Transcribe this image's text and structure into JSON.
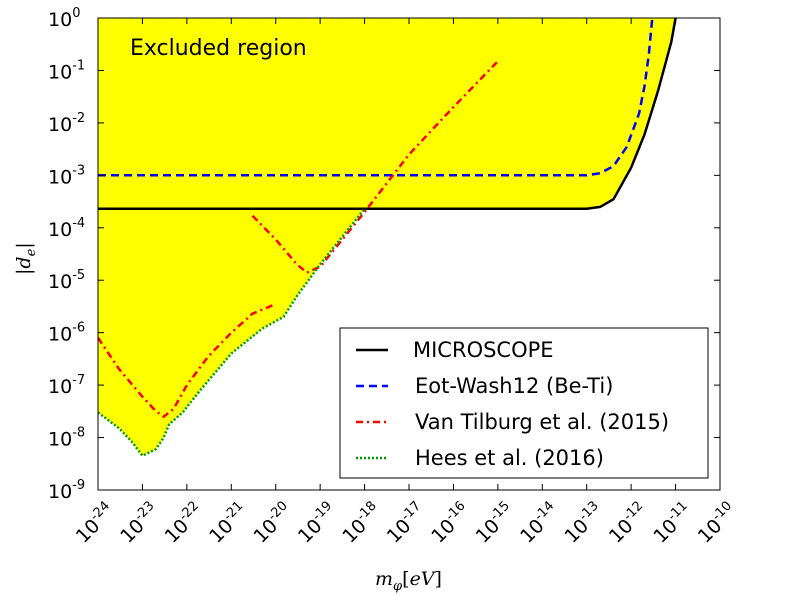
{
  "chart_data": {
    "type": "line",
    "xscale": "log",
    "yscale": "log",
    "xlim": [
      1e-24,
      1e-10
    ],
    "ylim": [
      1e-09,
      1
    ],
    "xlabel": "m_φ[eV]",
    "ylabel": "|d_e|",
    "x_tick_exponents": [
      "-24",
      "-23",
      "-22",
      "-21",
      "-20",
      "-19",
      "-18",
      "-17",
      "-16",
      "-15",
      "-14",
      "-13",
      "-12",
      "-11",
      "-10"
    ],
    "y_tick_labels": [
      {
        "base": "10",
        "exp": "-9",
        "value": 1e-09
      },
      {
        "base": "10",
        "exp": "-8",
        "value": 1e-08
      },
      {
        "base": "10",
        "exp": "-7",
        "value": 1e-07
      },
      {
        "base": "10",
        "exp": "-6",
        "value": 1e-06
      },
      {
        "base": "10",
        "exp": "-5",
        "value": 1e-05
      },
      {
        "base": "10",
        "exp": "-4",
        "value": 0.0001
      },
      {
        "base": "10",
        "exp": "-3",
        "value": 0.001
      },
      {
        "base": "10",
        "exp": "-2",
        "value": 0.01
      },
      {
        "base": "10",
        "exp": "-1",
        "value": 0.1
      },
      {
        "base": "10",
        "exp": "0",
        "value": 1
      }
    ],
    "annotation": "Excluded region",
    "excluded_color": "#ffff00",
    "legend_position": "lower-right",
    "series": [
      {
        "name": "MICROSCOPE",
        "color": "#000000",
        "style": "solid",
        "points": [
          [
            1e-24,
            0.00023
          ],
          [
            1e-14,
            0.00023
          ],
          [
            1e-13,
            0.00023
          ],
          [
            2e-13,
            0.00025
          ],
          [
            4e-13,
            0.00035
          ],
          [
            1e-12,
            0.0014
          ],
          [
            2e-12,
            0.006
          ],
          [
            4e-12,
            0.04
          ],
          [
            8e-12,
            0.35
          ],
          [
            1e-11,
            1
          ]
        ]
      },
      {
        "name": "Eot-Wash12 (Be-Ti)",
        "color": "#0000ff",
        "style": "dashed",
        "points": [
          [
            1e-24,
            0.001
          ],
          [
            1e-13,
            0.001
          ],
          [
            2e-13,
            0.0011
          ],
          [
            4e-13,
            0.0015
          ],
          [
            8e-13,
            0.0035
          ],
          [
            1.5e-12,
            0.015
          ],
          [
            2e-12,
            0.05
          ],
          [
            2.5e-12,
            0.2
          ],
          [
            3e-12,
            1
          ]
        ]
      },
      {
        "name": "Van Tilburg et al. (2015)",
        "color": "#ff0000",
        "style": "dashdot",
        "segments": [
          [
            [
              1e-24,
              8e-07
            ],
            [
              3e-24,
              2e-07
            ],
            [
              1e-23,
              6e-08
            ],
            [
              2e-23,
              3.2e-08
            ],
            [
              3e-23,
              2.5e-08
            ],
            [
              5e-23,
              3.5e-08
            ],
            [
              1e-22,
              1e-07
            ],
            [
              3e-22,
              3.5e-07
            ],
            [
              1e-21,
              1e-06
            ],
            [
              3e-21,
              2.3e-06
            ],
            [
              1e-20,
              3.5e-06
            ]
          ],
          [
            [
              3e-21,
              0.00017
            ],
            [
              1e-20,
              6e-05
            ],
            [
              3e-20,
              2e-05
            ],
            [
              5e-20,
              1.4e-05
            ],
            [
              1e-19,
              1.8e-05
            ],
            [
              1e-18,
              0.0002
            ],
            [
              1e-17,
              0.0025
            ],
            [
              1e-16,
              0.02
            ],
            [
              1e-15,
              0.15
            ]
          ]
        ]
      },
      {
        "name": "Hees et al. (2016)",
        "color": "#009900",
        "style": "dotted",
        "points": [
          [
            1e-24,
            3e-08
          ],
          [
            3e-24,
            1.5e-08
          ],
          [
            6e-24,
            8e-09
          ],
          [
            1e-23,
            4.5e-09
          ],
          [
            2e-23,
            6e-09
          ],
          [
            3e-23,
            1e-08
          ],
          [
            4e-23,
            1.8e-08
          ],
          [
            8e-23,
            3e-08
          ],
          [
            2e-22,
            8e-08
          ],
          [
            1e-21,
            4e-07
          ],
          [
            5e-21,
            1.2e-06
          ],
          [
            1.5e-20,
            2e-06
          ],
          [
            3e-20,
            5e-06
          ],
          [
            1e-19,
            2e-05
          ],
          [
            1e-18,
            0.00023
          ]
        ]
      }
    ]
  }
}
